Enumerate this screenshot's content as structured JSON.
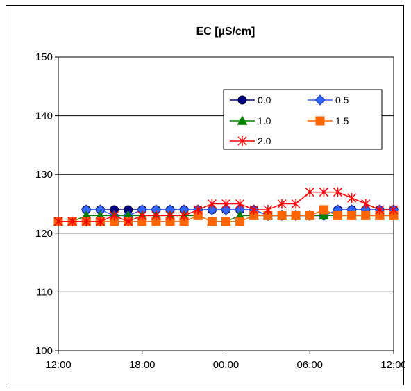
{
  "chart_data": {
    "type": "line",
    "title": "EC [µS/cm]",
    "xlabel": "",
    "ylabel": "",
    "x_tick_labels": [
      "12:00",
      "18:00",
      "00:00",
      "06:00",
      "12:00"
    ],
    "x_tick_hours": [
      0,
      6,
      12,
      18,
      24
    ],
    "ylim": [
      100,
      150
    ],
    "y_ticks": [
      100,
      110,
      120,
      130,
      140,
      150
    ],
    "grid": "horizontal",
    "legend_position": "top-right",
    "series": [
      {
        "name": "0.0",
        "color": "#000080",
        "marker": "circle",
        "x": [
          2,
          3,
          4,
          5,
          6,
          7,
          8,
          9,
          10,
          11,
          12,
          13,
          14,
          15,
          16,
          17,
          18,
          19,
          20,
          21,
          22,
          23,
          24
        ],
        "y": [
          124,
          124,
          124,
          124,
          124,
          124,
          124,
          124,
          124,
          124,
          124,
          124,
          124,
          123,
          123,
          123,
          123,
          123,
          124,
          124,
          124,
          124,
          124
        ]
      },
      {
        "name": "0.5",
        "color": "#3366ff",
        "marker": "diamond",
        "x": [
          2,
          3,
          4,
          5,
          6,
          7,
          8,
          9,
          10,
          11,
          12,
          13,
          14,
          15,
          16,
          17,
          18,
          19,
          20,
          21,
          22,
          23,
          24
        ],
        "y": [
          124,
          124,
          123,
          123,
          124,
          124,
          124,
          124,
          124,
          124,
          124,
          124,
          124,
          123,
          123,
          123,
          123,
          123,
          124,
          124,
          124,
          124,
          124
        ]
      },
      {
        "name": "1.0",
        "color": "#008000",
        "marker": "triangle",
        "x": [
          0,
          1,
          2,
          3,
          4,
          5,
          6,
          7,
          8,
          9,
          10,
          11,
          12,
          13,
          14,
          15,
          16,
          17,
          18,
          19,
          20,
          21,
          22,
          23,
          24
        ],
        "y": [
          122,
          122,
          123,
          123,
          123,
          123,
          123,
          123,
          123,
          123,
          123,
          122,
          122,
          123,
          123,
          123,
          123,
          123,
          123,
          123,
          123,
          123,
          123,
          123,
          123
        ]
      },
      {
        "name": "1.5",
        "color": "#ff6600",
        "marker": "square",
        "x": [
          0,
          1,
          2,
          3,
          4,
          5,
          6,
          7,
          8,
          9,
          10,
          11,
          12,
          13,
          14,
          15,
          16,
          17,
          18,
          19,
          20,
          21,
          22,
          23,
          24
        ],
        "y": [
          122,
          122,
          122,
          122,
          122,
          122,
          122,
          122,
          122,
          122,
          123,
          122,
          122,
          122,
          123,
          123,
          123,
          123,
          123,
          124,
          123,
          123,
          123,
          123,
          123
        ]
      },
      {
        "name": "2.0",
        "color": "#ff0000",
        "marker": "star",
        "x": [
          0,
          1,
          2,
          3,
          4,
          5,
          6,
          7,
          8,
          9,
          10,
          11,
          12,
          13,
          14,
          15,
          16,
          17,
          18,
          19,
          20,
          21,
          22,
          23,
          24
        ],
        "y": [
          122,
          122,
          122,
          122,
          123,
          122,
          123,
          123,
          123,
          123,
          124,
          125,
          125,
          125,
          124,
          124,
          125,
          125,
          127,
          127,
          127,
          126,
          125,
          124,
          124
        ]
      }
    ]
  }
}
